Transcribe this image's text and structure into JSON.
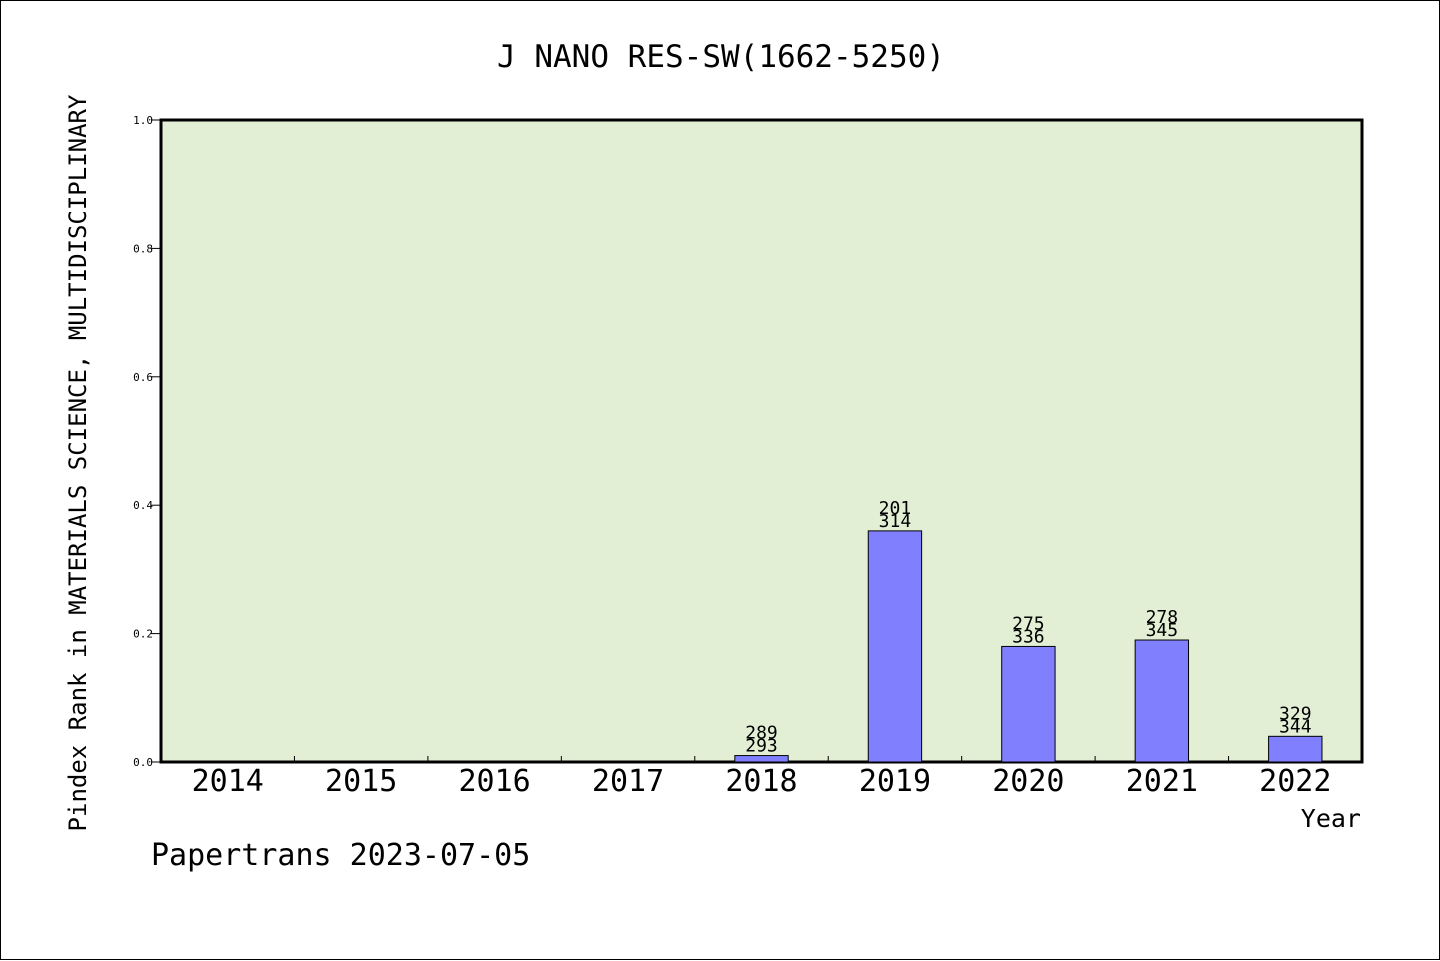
{
  "chart_data": {
    "type": "bar",
    "title": "J NANO RES-SW(1662-5250)",
    "xlabel": "Year",
    "ylabel": "Pindex Rank in MATERIALS SCIENCE, MULTIDISCIPLINARY",
    "footer": "Papertrans 2023-07-05",
    "categories": [
      "2014",
      "2015",
      "2016",
      "2017",
      "2018",
      "2019",
      "2020",
      "2021",
      "2022"
    ],
    "values": [
      0,
      0,
      0,
      0,
      0.01,
      0.36,
      0.18,
      0.19,
      0.04
    ],
    "label_top": [
      "",
      "",
      "",
      "",
      "289",
      "201",
      "275",
      "278",
      "329"
    ],
    "label_bottom": [
      "",
      "",
      "",
      "",
      "293",
      "314",
      "336",
      "345",
      "344"
    ],
    "ylim": [
      0,
      1.0
    ],
    "yticks": [
      "0.0",
      "0.2",
      "0.4",
      "0.6",
      "0.8",
      "1.0"
    ],
    "grid": false,
    "colors": {
      "plot_background": "#e2efd5",
      "bar_fill": "#8080ff",
      "bar_stroke": "#000000"
    }
  }
}
